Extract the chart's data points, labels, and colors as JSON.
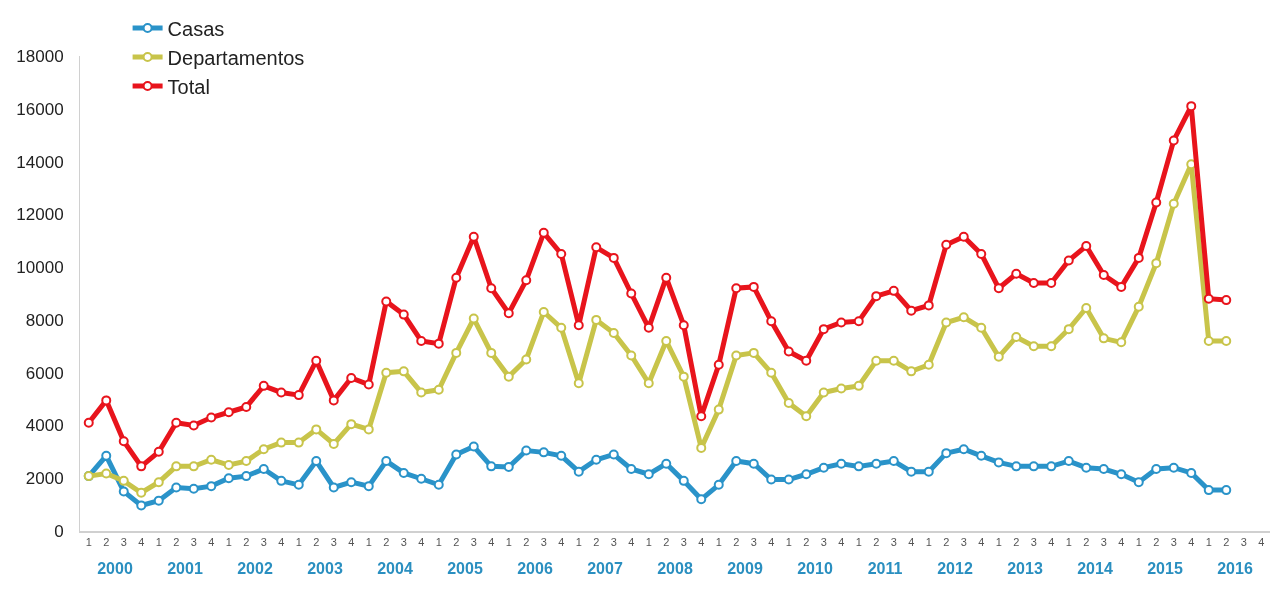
{
  "chart_data": {
    "type": "line",
    "categories": [
      "1",
      "2",
      "3",
      "4",
      "1",
      "2",
      "3",
      "4",
      "1",
      "2",
      "3",
      "4",
      "1",
      "2",
      "3",
      "4",
      "1",
      "2",
      "3",
      "4",
      "1",
      "2",
      "3",
      "4",
      "1",
      "2",
      "3",
      "4",
      "1",
      "2",
      "3",
      "4",
      "1",
      "2",
      "3",
      "4",
      "1",
      "2",
      "3",
      "4",
      "1",
      "2",
      "3",
      "4",
      "1",
      "2",
      "3",
      "4",
      "1",
      "2",
      "3",
      "4",
      "1",
      "2",
      "3",
      "4",
      "1",
      "2",
      "3",
      "4",
      "1",
      "2",
      "3",
      "4",
      "1",
      "2",
      "3",
      "4"
    ],
    "series": [
      {
        "name": "Casas",
        "color": "#2a93c9",
        "values": [
          2080,
          2850,
          1500,
          970,
          1150,
          1650,
          1600,
          1700,
          2000,
          2080,
          2350,
          1900,
          1750,
          2650,
          1650,
          1850,
          1700,
          2650,
          2200,
          1980,
          1750,
          2900,
          3200,
          2450,
          2430,
          3050,
          2980,
          2850,
          2250,
          2700,
          2900,
          2350,
          2150,
          2550,
          1900,
          1200,
          1750,
          2650,
          2550,
          1950,
          1950,
          2150,
          2400,
          2550,
          2450,
          2550,
          2650,
          2250,
          2250,
          2950,
          3100,
          2850,
          2600,
          2450,
          2450,
          2450,
          2650,
          2400,
          2350,
          2150,
          1850,
          2350,
          2400,
          2200,
          1550,
          1550,
          null,
          null
        ]
      },
      {
        "name": "Departamentos",
        "color": "#c8c44a",
        "values": [
          2080,
          2180,
          1900,
          1450,
          1850,
          2450,
          2450,
          2700,
          2500,
          2650,
          3100,
          3350,
          3350,
          3850,
          3300,
          4050,
          3850,
          6000,
          6050,
          5250,
          5350,
          6750,
          8050,
          6750,
          5850,
          6500,
          8300,
          7700,
          5600,
          8000,
          7500,
          6650,
          5600,
          7200,
          5850,
          3150,
          4600,
          6650,
          6750,
          6000,
          4850,
          4350,
          5250,
          5400,
          5500,
          6450,
          6450,
          6050,
          6300,
          7900,
          8100,
          7700,
          6600,
          7350,
          7000,
          7000,
          7650,
          8450,
          7300,
          7150,
          8500,
          10150,
          12400,
          13900,
          7200,
          7200,
          null,
          null
        ]
      },
      {
        "name": "Total",
        "color": "#e8141c",
        "values": [
          4100,
          4950,
          3400,
          2450,
          3000,
          4100,
          4000,
          4300,
          4500,
          4700,
          5500,
          5250,
          5150,
          6450,
          4950,
          5800,
          5550,
          8700,
          8200,
          7200,
          7100,
          9600,
          11150,
          9200,
          8250,
          9500,
          11300,
          10500,
          7800,
          10750,
          10350,
          9000,
          7700,
          9600,
          7800,
          4350,
          6300,
          9200,
          9250,
          7950,
          6800,
          6450,
          7650,
          7900,
          7950,
          8900,
          9100,
          8350,
          8550,
          10850,
          11150,
          10500,
          9200,
          9750,
          9400,
          9400,
          10250,
          10800,
          9700,
          9250,
          10350,
          12450,
          14800,
          16100,
          8800,
          8750,
          null,
          null
        ]
      }
    ],
    "ylim": [
      0,
      18000
    ],
    "yticks": [
      0,
      2000,
      4000,
      6000,
      8000,
      10000,
      12000,
      14000,
      16000,
      18000
    ],
    "x2lim": [
      2000,
      2017
    ],
    "x2ticks": [
      {
        "value": 2000.5,
        "label": "2000"
      },
      {
        "value": 2001.5,
        "label": "2001"
      },
      {
        "value": 2002.5,
        "label": "2002"
      },
      {
        "value": 2003.5,
        "label": "2003"
      },
      {
        "value": 2004.5,
        "label": "2004"
      },
      {
        "value": 2005.5,
        "label": "2005"
      },
      {
        "value": 2006.5,
        "label": "2006"
      },
      {
        "value": 2007.5,
        "label": "2007"
      },
      {
        "value": 2008.5,
        "label": "2008"
      },
      {
        "value": 2009.5,
        "label": "2009"
      },
      {
        "value": 2010.5,
        "label": "2010"
      },
      {
        "value": 2011.5,
        "label": "2011"
      },
      {
        "value": 2012.5,
        "label": "2012"
      },
      {
        "value": 2013.5,
        "label": "2013"
      },
      {
        "value": 2014.5,
        "label": "2014"
      },
      {
        "value": 2015.5,
        "label": "2015"
      },
      {
        "value": 2016.5,
        "label": "2016"
      }
    ],
    "grid": false,
    "legend": "top left",
    "marker": "circle",
    "line_style": "solid"
  }
}
